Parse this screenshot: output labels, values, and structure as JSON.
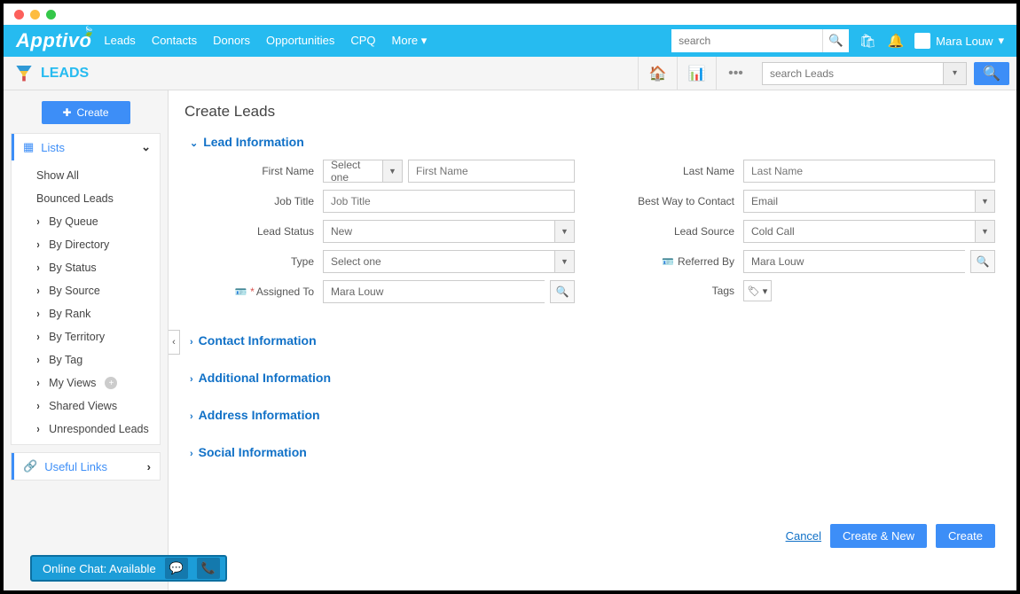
{
  "topnav": {
    "logo": "Apptivo",
    "menu": [
      "Leads",
      "Contacts",
      "Donors",
      "Opportunities",
      "CPQ",
      "More"
    ],
    "search_placeholder": "search",
    "user": "Mara Louw"
  },
  "subhead": {
    "title": "LEADS",
    "search_placeholder": "search Leads"
  },
  "sidebar": {
    "create": "Create",
    "lists_label": "Lists",
    "lists": [
      {
        "label": "Show All",
        "caret": false
      },
      {
        "label": "Bounced Leads",
        "caret": false
      },
      {
        "label": "By Queue",
        "caret": true
      },
      {
        "label": "By Directory",
        "caret": true
      },
      {
        "label": "By Status",
        "caret": true
      },
      {
        "label": "By Source",
        "caret": true
      },
      {
        "label": "By Rank",
        "caret": true
      },
      {
        "label": "By Territory",
        "caret": true
      },
      {
        "label": "By Tag",
        "caret": true
      },
      {
        "label": "My Views",
        "caret": true,
        "plus": true
      },
      {
        "label": "Shared Views",
        "caret": true
      },
      {
        "label": "Unresponded Leads",
        "caret": true
      }
    ],
    "useful_links": "Useful Links"
  },
  "page": {
    "title": "Create Leads",
    "sections": {
      "lead_info": "Lead Information",
      "contact_info": "Contact Information",
      "additional_info": "Additional Information",
      "address_info": "Address Information",
      "social_info": "Social Information"
    },
    "fields": {
      "first_name_label": "First Name",
      "first_name_sel": "Select one",
      "first_name_ph": "First Name",
      "job_title_label": "Job Title",
      "job_title_ph": "Job Title",
      "lead_status_label": "Lead Status",
      "lead_status_val": "New",
      "type_label": "Type",
      "type_val": "Select one",
      "assigned_to_label": "Assigned To",
      "assigned_to_val": "Mara Louw",
      "last_name_label": "Last Name",
      "last_name_ph": "Last Name",
      "best_way_label": "Best Way to Contact",
      "best_way_val": "Email",
      "lead_source_label": "Lead Source",
      "lead_source_val": "Cold Call",
      "referred_by_label": "Referred By",
      "referred_by_val": "Mara Louw",
      "tags_label": "Tags"
    },
    "buttons": {
      "cancel": "Cancel",
      "create_new": "Create & New",
      "create": "Create"
    }
  },
  "chat": {
    "label": "Online Chat: Available"
  }
}
